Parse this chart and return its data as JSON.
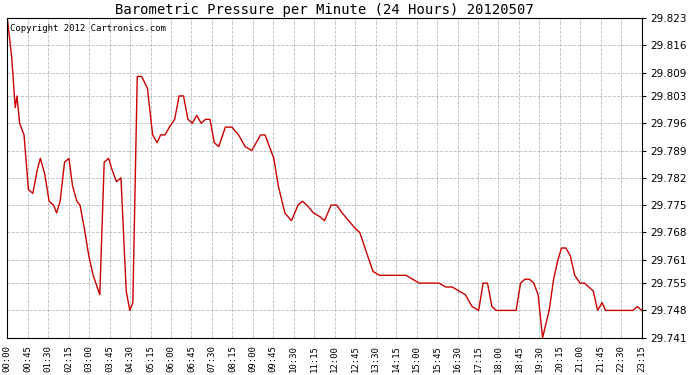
{
  "title": "Barometric Pressure per Minute (24 Hours) 20120507",
  "copyright": "Copyright 2012 Cartronics.com",
  "line_color": "#cc0000",
  "background_color": "#ffffff",
  "grid_color": "#bbbbbb",
  "ylim": [
    29.741,
    29.823
  ],
  "yticks": [
    29.741,
    29.748,
    29.755,
    29.761,
    29.768,
    29.775,
    29.782,
    29.789,
    29.796,
    29.803,
    29.809,
    29.816,
    29.823
  ],
  "xtick_labels": [
    "00:00",
    "00:45",
    "01:30",
    "02:15",
    "03:00",
    "03:45",
    "04:30",
    "05:15",
    "06:00",
    "06:45",
    "07:30",
    "08:15",
    "09:00",
    "09:45",
    "10:30",
    "11:15",
    "12:00",
    "12:45",
    "13:30",
    "14:15",
    "15:00",
    "15:45",
    "16:30",
    "17:15",
    "18:00",
    "18:45",
    "19:30",
    "20:15",
    "21:00",
    "21:45",
    "22:30",
    "23:15"
  ],
  "key_points": [
    [
      0,
      29.823
    ],
    [
      10,
      29.813
    ],
    [
      18,
      29.8
    ],
    [
      22,
      29.803
    ],
    [
      28,
      29.796
    ],
    [
      38,
      29.793
    ],
    [
      48,
      29.779
    ],
    [
      58,
      29.778
    ],
    [
      68,
      29.784
    ],
    [
      75,
      29.787
    ],
    [
      85,
      29.783
    ],
    [
      95,
      29.776
    ],
    [
      105,
      29.775
    ],
    [
      112,
      29.773
    ],
    [
      120,
      29.776
    ],
    [
      130,
      29.786
    ],
    [
      140,
      29.787
    ],
    [
      148,
      29.78
    ],
    [
      158,
      29.776
    ],
    [
      165,
      29.775
    ],
    [
      175,
      29.769
    ],
    [
      185,
      29.762
    ],
    [
      195,
      29.757
    ],
    [
      210,
      29.752
    ],
    [
      220,
      29.786
    ],
    [
      230,
      29.787
    ],
    [
      238,
      29.784
    ],
    [
      248,
      29.781
    ],
    [
      258,
      29.782
    ],
    [
      270,
      29.753
    ],
    [
      278,
      29.748
    ],
    [
      285,
      29.75
    ],
    [
      295,
      29.808
    ],
    [
      305,
      29.808
    ],
    [
      318,
      29.805
    ],
    [
      330,
      29.793
    ],
    [
      340,
      29.791
    ],
    [
      348,
      29.793
    ],
    [
      358,
      29.793
    ],
    [
      368,
      29.795
    ],
    [
      380,
      29.797
    ],
    [
      390,
      29.803
    ],
    [
      400,
      29.803
    ],
    [
      410,
      29.797
    ],
    [
      420,
      29.796
    ],
    [
      430,
      29.798
    ],
    [
      440,
      29.796
    ],
    [
      450,
      29.797
    ],
    [
      460,
      29.797
    ],
    [
      470,
      29.791
    ],
    [
      480,
      29.79
    ],
    [
      495,
      29.795
    ],
    [
      510,
      29.795
    ],
    [
      525,
      29.793
    ],
    [
      540,
      29.79
    ],
    [
      555,
      29.789
    ],
    [
      565,
      29.791
    ],
    [
      575,
      29.793
    ],
    [
      585,
      29.793
    ],
    [
      595,
      29.79
    ],
    [
      605,
      29.787
    ],
    [
      615,
      29.78
    ],
    [
      630,
      29.773
    ],
    [
      645,
      29.771
    ],
    [
      660,
      29.775
    ],
    [
      670,
      29.776
    ],
    [
      680,
      29.775
    ],
    [
      695,
      29.773
    ],
    [
      710,
      29.772
    ],
    [
      720,
      29.771
    ],
    [
      735,
      29.775
    ],
    [
      748,
      29.775
    ],
    [
      760,
      29.773
    ],
    [
      775,
      29.771
    ],
    [
      790,
      29.769
    ],
    [
      800,
      29.768
    ],
    [
      815,
      29.763
    ],
    [
      830,
      29.758
    ],
    [
      845,
      29.757
    ],
    [
      860,
      29.757
    ],
    [
      875,
      29.757
    ],
    [
      890,
      29.757
    ],
    [
      905,
      29.757
    ],
    [
      920,
      29.756
    ],
    [
      935,
      29.755
    ],
    [
      950,
      29.755
    ],
    [
      965,
      29.755
    ],
    [
      980,
      29.755
    ],
    [
      995,
      29.754
    ],
    [
      1010,
      29.754
    ],
    [
      1025,
      29.753
    ],
    [
      1040,
      29.752
    ],
    [
      1055,
      29.749
    ],
    [
      1070,
      29.748
    ],
    [
      1080,
      29.755
    ],
    [
      1090,
      29.755
    ],
    [
      1100,
      29.749
    ],
    [
      1110,
      29.748
    ],
    [
      1125,
      29.748
    ],
    [
      1140,
      29.748
    ],
    [
      1155,
      29.748
    ],
    [
      1165,
      29.755
    ],
    [
      1175,
      29.756
    ],
    [
      1185,
      29.756
    ],
    [
      1195,
      29.755
    ],
    [
      1205,
      29.752
    ],
    [
      1215,
      29.741
    ],
    [
      1230,
      29.748
    ],
    [
      1240,
      29.756
    ],
    [
      1250,
      29.761
    ],
    [
      1258,
      29.764
    ],
    [
      1268,
      29.764
    ],
    [
      1278,
      29.762
    ],
    [
      1288,
      29.757
    ],
    [
      1300,
      29.755
    ],
    [
      1310,
      29.755
    ],
    [
      1320,
      29.754
    ],
    [
      1330,
      29.753
    ],
    [
      1340,
      29.748
    ],
    [
      1350,
      29.75
    ],
    [
      1358,
      29.748
    ],
    [
      1368,
      29.748
    ],
    [
      1380,
      29.748
    ],
    [
      1390,
      29.748
    ],
    [
      1400,
      29.748
    ],
    [
      1410,
      29.748
    ],
    [
      1420,
      29.748
    ],
    [
      1430,
      29.749
    ],
    [
      1440,
      29.748
    ]
  ]
}
